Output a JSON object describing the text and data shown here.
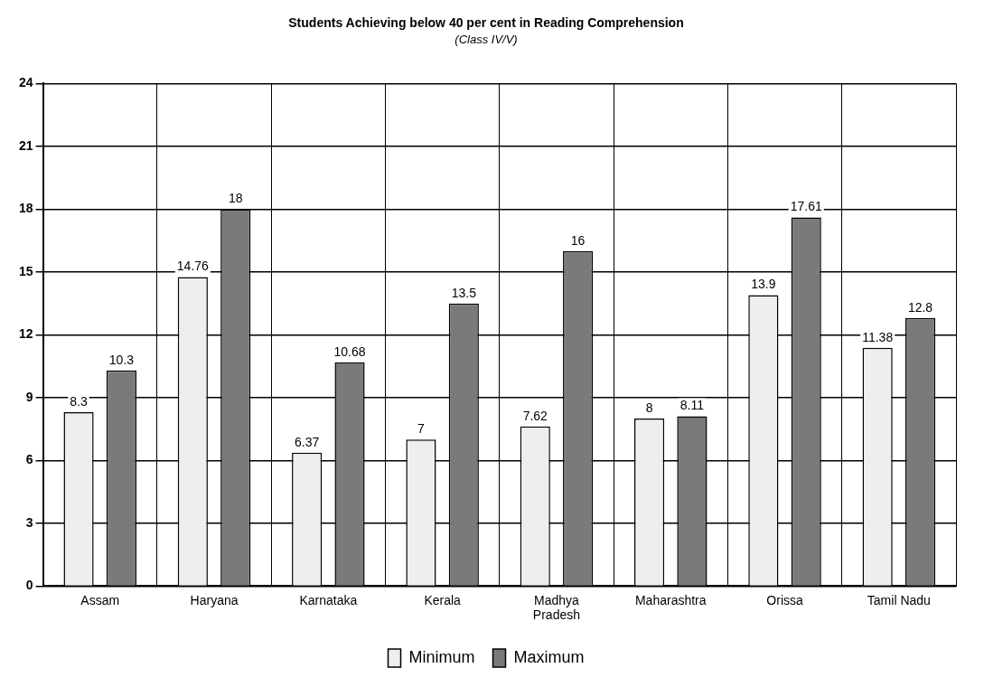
{
  "chart_data": {
    "type": "bar",
    "title": "Students Achieving below 40 per cent in Reading Comprehension",
    "subtitle": "(Class IV/V)",
    "categories": [
      "Assam",
      "Haryana",
      "Karnataka",
      "Kerala",
      "Madhya Pradesh",
      "Maharashtra",
      "Orissa",
      "Tamil Nadu"
    ],
    "series": [
      {
        "name": "Minimum",
        "color": "#eeeeee",
        "values": [
          8.3,
          14.76,
          6.37,
          7,
          7.62,
          8,
          13.9,
          11.38
        ]
      },
      {
        "name": "Maximum",
        "color": "#7a7a7a",
        "values": [
          10.3,
          18,
          10.68,
          13.5,
          16,
          8.11,
          17.61,
          12.8
        ]
      }
    ],
    "ylim": [
      0,
      24
    ],
    "yticks": [
      0,
      3,
      6,
      9,
      12,
      15,
      18,
      21,
      24
    ],
    "grid": true,
    "legend": "bottom",
    "data_labels": true
  }
}
